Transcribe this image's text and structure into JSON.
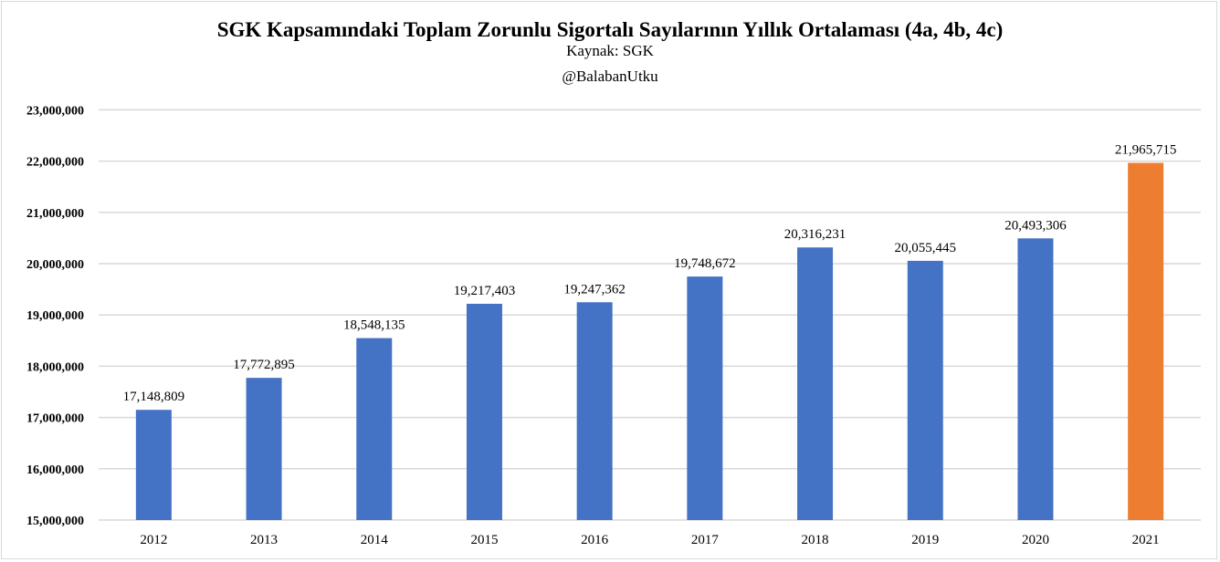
{
  "chart_data": {
    "type": "bar",
    "title": "SGK Kapsamındaki Toplam Zorunlu Sigortalı Sayılarının Yıllık Ortalaması (4a, 4b, 4c)",
    "subtitle": [
      "Kaynak: SGK",
      "@BalabanUtku"
    ],
    "categories": [
      "2012",
      "2013",
      "2014",
      "2015",
      "2016",
      "2017",
      "2018",
      "2019",
      "2020",
      "2021"
    ],
    "values": [
      17148809,
      17772895,
      18548135,
      19217403,
      19247362,
      19748672,
      20316231,
      20055445,
      20493306,
      21965715
    ],
    "data_labels": [
      "17,148,809",
      "17,772,895",
      "18,548,135",
      "19,217,403",
      "19,247,362",
      "19,748,672",
      "20,316,231",
      "20,055,445",
      "20,493,306",
      "21,965,715"
    ],
    "bar_colors": [
      "#4472c4",
      "#4472c4",
      "#4472c4",
      "#4472c4",
      "#4472c4",
      "#4472c4",
      "#4472c4",
      "#4472c4",
      "#4472c4",
      "#ed7d31"
    ],
    "ylim": [
      15000000,
      23000000
    ],
    "yticks": [
      15000000,
      16000000,
      17000000,
      18000000,
      19000000,
      20000000,
      21000000,
      22000000,
      23000000
    ],
    "ytick_labels": [
      "15,000,000",
      "16,000,000",
      "17,000,000",
      "18,000,000",
      "19,000,000",
      "20,000,000",
      "21,000,000",
      "22,000,000",
      "23,000,000"
    ],
    "grid": true,
    "gridline_color": "#d9d9d9",
    "xlabel": "",
    "ylabel": ""
  }
}
